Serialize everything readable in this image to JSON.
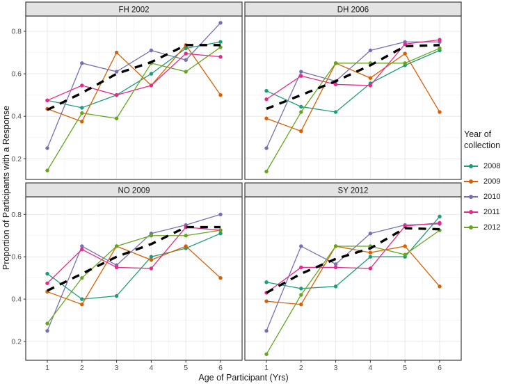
{
  "figure": {
    "y_axis_title": "Proportion of Participants with a Response",
    "x_axis_title": "Age of Participant (Yrs)"
  },
  "legend": {
    "title": "Year of collection",
    "entries": [
      {
        "label": "2008",
        "color": "#1B9E77"
      },
      {
        "label": "2009",
        "color": "#D95F02"
      },
      {
        "label": "2010",
        "color": "#7570B3"
      },
      {
        "label": "2011",
        "color": "#E7298A"
      },
      {
        "label": "2012",
        "color": "#66A61E"
      }
    ]
  },
  "chart_data": {
    "type": "line",
    "title": "",
    "xlabel": "Age of Participant (Yrs)",
    "ylabel": "Proportion of Participants with a Response",
    "x": [
      1,
      2,
      3,
      4,
      5,
      6
    ],
    "x_tick_labels": [
      "1",
      "2",
      "3",
      "4",
      "5",
      "6"
    ],
    "y_ticks": [
      0.2,
      0.4,
      0.6,
      0.8
    ],
    "y_tick_labels": [
      "0.2",
      "0.4",
      "0.6",
      "0.8"
    ],
    "y_minor_ticks": [
      0.3,
      0.5,
      0.7
    ],
    "ylim": [
      0.1,
      0.88
    ],
    "grid": "on",
    "legend_position": "right",
    "trend_style": "dashed black (overall trend line)",
    "colors": {
      "2008": "#1B9E77",
      "2009": "#D95F02",
      "2010": "#7570B3",
      "2011": "#E7298A",
      "2012": "#66A61E",
      "trend": "#000000"
    },
    "facets": [
      {
        "label": "FH 2002",
        "series": [
          {
            "name": "2008",
            "values": [
              0.475,
              0.44,
              0.5,
              0.6,
              0.72,
              0.75
            ]
          },
          {
            "name": "2009",
            "values": [
              0.435,
              0.375,
              0.7,
              0.545,
              0.735,
              0.5
            ]
          },
          {
            "name": "2010",
            "values": [
              0.25,
              0.65,
              0.61,
              0.71,
              0.665,
              0.84
            ]
          },
          {
            "name": "2011",
            "values": [
              0.475,
              0.545,
              0.5,
              0.545,
              0.695,
              0.68
            ]
          },
          {
            "name": "2012",
            "values": [
              0.145,
              0.415,
              0.39,
              0.65,
              0.61,
              0.725
            ]
          }
        ],
        "trend": [
          0.43,
          0.51,
          0.6,
          0.655,
          0.735,
          0.735
        ]
      },
      {
        "label": "DH 2006",
        "series": [
          {
            "name": "2008",
            "values": [
              0.52,
              0.445,
              0.42,
              0.555,
              0.64,
              0.71
            ]
          },
          {
            "name": "2009",
            "values": [
              0.39,
              0.33,
              0.65,
              0.58,
              0.695,
              0.42
            ]
          },
          {
            "name": "2010",
            "values": [
              0.25,
              0.61,
              0.565,
              0.71,
              0.75,
              0.75
            ]
          },
          {
            "name": "2011",
            "values": [
              0.48,
              0.59,
              0.55,
              0.545,
              0.74,
              0.76
            ]
          },
          {
            "name": "2012",
            "values": [
              0.14,
              0.42,
              0.65,
              0.65,
              0.65,
              0.72
            ]
          }
        ],
        "trend": [
          0.435,
          0.5,
          0.565,
          0.64,
          0.73,
          0.735
        ]
      },
      {
        "label": "NO 2009",
        "series": [
          {
            "name": "2008",
            "values": [
              0.52,
              0.4,
              0.415,
              0.6,
              0.64,
              0.71
            ]
          },
          {
            "name": "2009",
            "values": [
              0.435,
              0.375,
              0.65,
              0.585,
              0.65,
              0.5
            ]
          },
          {
            "name": "2010",
            "values": [
              0.25,
              0.65,
              0.56,
              0.71,
              0.75,
              0.8
            ]
          },
          {
            "name": "2011",
            "values": [
              0.475,
              0.635,
              0.55,
              0.545,
              0.74,
              0.725
            ]
          },
          {
            "name": "2012",
            "values": [
              0.285,
              0.5,
              0.65,
              0.7,
              0.7,
              0.725
            ]
          }
        ],
        "trend": [
          0.44,
          0.52,
          0.6,
          0.66,
          0.74,
          0.74
        ]
      },
      {
        "label": "SY 2012",
        "series": [
          {
            "name": "2008",
            "values": [
              0.48,
              0.45,
              0.46,
              0.6,
              0.6,
              0.79
            ]
          },
          {
            "name": "2009",
            "values": [
              0.39,
              0.375,
              0.65,
              0.62,
              0.65,
              0.46
            ]
          },
          {
            "name": "2010",
            "values": [
              0.25,
              0.65,
              0.565,
              0.71,
              0.75,
              0.755
            ]
          },
          {
            "name": "2011",
            "values": [
              0.43,
              0.55,
              0.55,
              0.545,
              0.745,
              0.76
            ]
          },
          {
            "name": "2012",
            "values": [
              0.14,
              0.42,
              0.65,
              0.65,
              0.61,
              0.725
            ]
          }
        ],
        "trend": [
          0.43,
          0.52,
          0.59,
          0.64,
          0.735,
          0.73
        ]
      }
    ]
  }
}
